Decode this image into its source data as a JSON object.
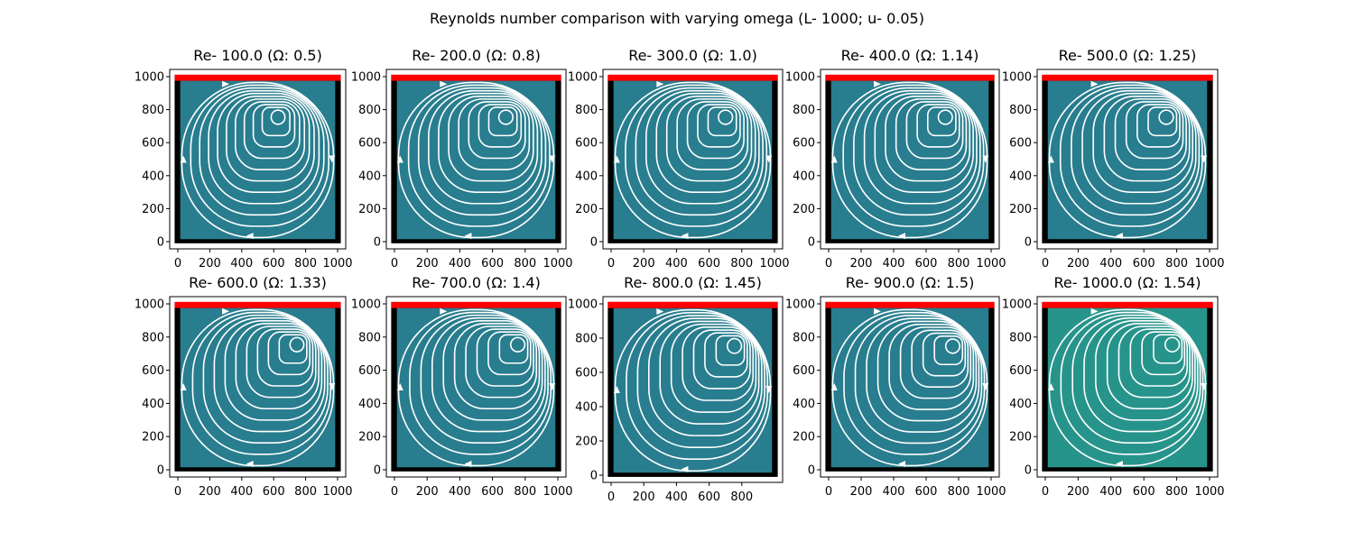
{
  "figure": {
    "suptitle": "Reynolds number comparison with varying omega (L- 1000; u- 0.05)"
  },
  "style": {
    "fluid_color": "#287d8e",
    "fluid_color_last": "#27948b",
    "wall_color": "#000000",
    "lid_color": "#ff0000",
    "streamline_color": "#ffffff"
  },
  "chart_data": [
    {
      "type": "streamplot",
      "title": "Re- 100.0 (Ω: 0.5)",
      "re": 100,
      "omega": 0.5,
      "vortex_center": [
        640,
        780
      ],
      "xlim": [
        0,
        1000
      ],
      "ylim": [
        0,
        1000
      ],
      "xticks": [
        "0",
        "200",
        "400",
        "600",
        "800",
        "1000"
      ],
      "yticks": [
        "0",
        "200",
        "400",
        "600",
        "800",
        "1000"
      ]
    },
    {
      "type": "streamplot",
      "title": "Re- 200.0 (Ω: 0.8)",
      "re": 200,
      "omega": 0.8,
      "vortex_center": [
        700,
        780
      ],
      "xlim": [
        0,
        1000
      ],
      "ylim": [
        0,
        1000
      ],
      "xticks": [
        "0",
        "200",
        "400",
        "600",
        "800",
        "1000"
      ],
      "yticks": [
        "0",
        "200",
        "400",
        "600",
        "800",
        "1000"
      ]
    },
    {
      "type": "streamplot",
      "title": "Re- 300.0 (Ω: 1.0)",
      "re": 300,
      "omega": 1.0,
      "vortex_center": [
        720,
        780
      ],
      "xlim": [
        0,
        1000
      ],
      "ylim": [
        0,
        1000
      ],
      "xticks": [
        "0",
        "200",
        "400",
        "600",
        "800",
        "1000"
      ],
      "yticks": [
        "0",
        "200",
        "400",
        "600",
        "800",
        "1000"
      ]
    },
    {
      "type": "streamplot",
      "title": "Re- 400.0 (Ω: 1.14)",
      "re": 400,
      "omega": 1.14,
      "vortex_center": [
        740,
        780
      ],
      "xlim": [
        0,
        1000
      ],
      "ylim": [
        0,
        1000
      ],
      "xticks": [
        "0",
        "200",
        "400",
        "600",
        "800",
        "1000"
      ],
      "yticks": [
        "0",
        "200",
        "400",
        "600",
        "800",
        "1000"
      ]
    },
    {
      "type": "streamplot",
      "title": "Re- 500.0 (Ω: 1.25)",
      "re": 500,
      "omega": 1.25,
      "vortex_center": [
        760,
        780
      ],
      "xlim": [
        0,
        1000
      ],
      "ylim": [
        0,
        1000
      ],
      "xticks": [
        "0",
        "200",
        "400",
        "600",
        "800",
        "1000"
      ],
      "yticks": [
        "0",
        "200",
        "400",
        "600",
        "800",
        "1000"
      ]
    },
    {
      "type": "streamplot",
      "title": "Re- 600.0 (Ω: 1.33)",
      "re": 600,
      "omega": 1.33,
      "vortex_center": [
        770,
        780
      ],
      "xlim": [
        0,
        1000
      ],
      "ylim": [
        0,
        1000
      ],
      "xticks": [
        "0",
        "200",
        "400",
        "600",
        "800",
        "1000"
      ],
      "yticks": [
        "0",
        "200",
        "400",
        "600",
        "800",
        "1000"
      ]
    },
    {
      "type": "streamplot",
      "title": "Re- 700.0 (Ω: 1.4)",
      "re": 700,
      "omega": 1.4,
      "vortex_center": [
        780,
        780
      ],
      "xlim": [
        0,
        1000
      ],
      "ylim": [
        0,
        1000
      ],
      "xticks": [
        "0",
        "200",
        "400",
        "600",
        "800",
        "1000"
      ],
      "yticks": [
        "0",
        "200",
        "400",
        "600",
        "800",
        "1000"
      ]
    },
    {
      "type": "streamplot",
      "title": "Re- 800.0 (Ω: 1.45)",
      "re": 800,
      "omega": 1.45,
      "vortex_center": [
        780,
        780
      ],
      "xlim": [
        0,
        1000
      ],
      "ylim": [
        0,
        1000
      ],
      "xticks": [
        "0",
        "200",
        "400",
        "600",
        "800"
      ],
      "yticks": [
        "0",
        "200",
        "400",
        "600",
        "800",
        "1000"
      ]
    },
    {
      "type": "streamplot",
      "title": "Re- 900.0 (Ω: 1.5)",
      "re": 900,
      "omega": 1.5,
      "vortex_center": [
        790,
        770
      ],
      "xlim": [
        0,
        1000
      ],
      "ylim": [
        0,
        1000
      ],
      "xticks": [
        "0",
        "200",
        "400",
        "600",
        "800",
        "1000"
      ],
      "yticks": [
        "0",
        "200",
        "400",
        "600",
        "800",
        "1000"
      ]
    },
    {
      "type": "streamplot",
      "title": "Re- 1000.0 (Ω: 1.54)",
      "re": 1000,
      "omega": 1.54,
      "vortex_center": [
        800,
        780
      ],
      "xlim": [
        0,
        1000
      ],
      "ylim": [
        0,
        1000
      ],
      "xticks": [
        "0",
        "200",
        "400",
        "600",
        "800",
        "1000"
      ],
      "yticks": [
        "0",
        "200",
        "400",
        "600",
        "800",
        "1000"
      ]
    }
  ]
}
